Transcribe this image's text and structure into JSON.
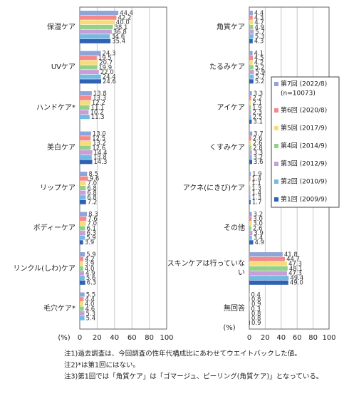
{
  "chart_data": [
    {
      "type": "bar",
      "orientation": "horizontal",
      "unit": "(%)",
      "categories": [
        "保湿ケア",
        "UVケア",
        "ハンドケア*",
        "美白ケア",
        "リップケア",
        "ボディーケア",
        "リンクル(しわ)ケア",
        "毛穴ケア*"
      ],
      "series": [
        {
          "color": "#8fa4d8",
          "values": [
            44.4,
            24.3,
            13.8,
            13.0,
            8.5,
            8.3,
            5.9,
            5.5
          ],
          "value_labels": [
            "44.4",
            "24.3",
            "13.8",
            "13.0",
            "8.5",
            "8.3",
            "5.9",
            "5.5"
          ]
        },
        {
          "color": "#f4898a",
          "values": [
            42.2,
            19.5,
            13.3,
            12.5,
            9.6,
            7.6,
            4.2,
            4.4
          ],
          "value_labels": [
            "42.2",
            "19.5",
            "13.3",
            "12.5",
            "9.6",
            "7.6",
            "4.2",
            "4.4"
          ]
        },
        {
          "color": "#f6dd7a",
          "values": [
            40.0,
            20.7,
            12.2,
            13.2,
            7.0,
            7.0,
            3.9,
            4.0
          ],
          "value_labels": [
            "40.0",
            "20.7",
            "12.2",
            "13.2",
            "7.0",
            "7.0",
            "3.9",
            "4.0"
          ]
        },
        {
          "color": "#92d08c",
          "values": [
            38.1,
            19.9,
            11.1,
            12.6,
            6.8,
            6.1,
            4.0,
            4.6
          ],
          "value_labels": [
            "38.1",
            "19.9",
            "11.1",
            "12.6",
            "6.8",
            "6.1",
            "4.0",
            "4.6"
          ]
        },
        {
          "color": "#c79fd6",
          "values": [
            36.8,
            22.0,
            10.2,
            14.4,
            6.8,
            6.3,
            4.9,
            5.3
          ],
          "value_labels": [
            "36.8",
            "22.0",
            "10.2",
            "14.4",
            "6.8",
            "6.3",
            "4.9",
            "5.3"
          ]
        },
        {
          "color": "#74b8e4",
          "values": [
            34.6,
            24.4,
            11.3,
            13.8,
            6.8,
            5.9,
            5.6,
            5.4
          ],
          "value_labels": [
            "34.6",
            "24.4",
            "11.3",
            "13.8",
            "6.8",
            "5.9",
            "5.6",
            "5.4"
          ]
        },
        {
          "color": "#2f62b3",
          "values": [
            35.4,
            24.6,
            null,
            14.3,
            7.2,
            3.9,
            6.3,
            null
          ],
          "value_labels": [
            "35.4",
            "24.6",
            null,
            "14.3",
            "7.2",
            "3.9",
            "6.3",
            null
          ]
        }
      ],
      "xlim": [
        0,
        100
      ],
      "xticks": [
        0,
        20,
        40,
        60,
        80,
        100
      ],
      "grid": true
    },
    {
      "type": "bar",
      "orientation": "horizontal",
      "unit": "(%)",
      "categories": [
        "角質ケア",
        "たるみケア",
        "アイケア",
        "くすみケア",
        "アクネ(にきび)ケア",
        "その他",
        "スキンケアは行っていない",
        "無回答"
      ],
      "legend_note": "(n=10073)",
      "series": [
        {
          "name": "第7回 (2022/8)",
          "color": "#8fa4d8",
          "values": [
            4.4,
            4.1,
            3.3,
            3.7,
            1.9,
            3.2,
            41.8,
            0.4
          ],
          "value_labels": [
            "4.4",
            "4.1",
            "3.3",
            "3.7",
            "1.9",
            "3.2",
            "41.8",
            "0.4"
          ]
        },
        {
          "name": "第6回 (2020/8)",
          "color": "#f4898a",
          "values": [
            4.3,
            4.5,
            2.2,
            2.6,
            1.4,
            3.0,
            44.7,
            0.8
          ],
          "value_labels": [
            "4.3",
            "4.5",
            "2.2",
            "2.6",
            "1.4",
            "3.0",
            "44.7",
            "0.8"
          ]
        },
        {
          "name": "第5回 (2017/9)",
          "color": "#f6dd7a",
          "values": [
            4.7,
            4.2,
            2.1,
            2.6,
            1.1,
            3.0,
            47.3,
            0.9
          ],
          "value_labels": [
            "4.7",
            "4.2",
            "2.1",
            "2.6",
            "1.1",
            "3.0",
            "47.3",
            "0.9"
          ]
        },
        {
          "name": "第4回 (2014/9)",
          "color": "#92d08c",
          "values": [
            4.9,
            5.2,
            1.9,
            2.8,
            1.3,
            2.6,
            48.1,
            0.3
          ],
          "value_labels": [
            "4.9",
            "5.2",
            "1.9",
            "2.8",
            "1.3",
            "2.6",
            "48.1",
            "0.3"
          ]
        },
        {
          "name": "第3回 (2012/9)",
          "color": "#c79fd6",
          "values": [
            5.7,
            5.9,
            2.3,
            3.3,
            1.4,
            3.9,
            47.3,
            0.8
          ],
          "value_labels": [
            "5.7",
            "5.9",
            "2.3",
            "3.3",
            "1.4",
            "3.9",
            "47.3",
            "0.8"
          ]
        },
        {
          "name": "第2回 (2010/9)",
          "color": "#74b8e4",
          "values": [
            5.3,
            5.7,
            2.5,
            3.2,
            1.3,
            3.4,
            49.4,
            0.8
          ],
          "value_labels": [
            "5.3",
            "5.7",
            "2.5",
            "3.2",
            "1.3",
            "3.4",
            "49.4",
            "0.8"
          ]
        },
        {
          "name": "第1回 (2009/9)",
          "color": "#2f62b3",
          "values": [
            4.3,
            5.2,
            3.1,
            3.6,
            1.7,
            4.9,
            49.0,
            0.9
          ],
          "value_labels": [
            "4.3",
            "5.2",
            "3.1",
            "3.6",
            "1.7",
            "4.9",
            "49.0",
            "0.9"
          ]
        }
      ],
      "xlim": [
        0,
        100
      ],
      "xticks": [
        0,
        20,
        40,
        60,
        80,
        100
      ],
      "grid": true
    }
  ],
  "notes": [
    "注1)過去調査は、今回調査の性年代構成比にあわせてウエイトバックした値。",
    "注2)*は第1回にはない。",
    "注3)第1回では「角質ケア」は「ゴマージュ、ピーリング(角質ケア)」となっている。"
  ]
}
